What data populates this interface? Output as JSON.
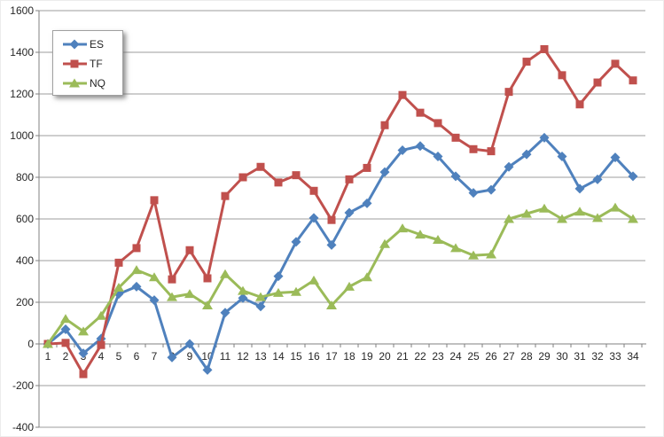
{
  "chart_data": {
    "type": "line",
    "title": "",
    "xlabel": "",
    "ylabel": "",
    "grid": true,
    "ylim": [
      -400,
      1600
    ],
    "ytick_step": 200,
    "y_ticks": [
      1600,
      1400,
      1200,
      1000,
      800,
      600,
      400,
      200,
      0,
      -200,
      -400
    ],
    "categories": [
      1,
      2,
      3,
      4,
      5,
      6,
      7,
      8,
      9,
      10,
      11,
      12,
      13,
      14,
      15,
      16,
      17,
      18,
      19,
      20,
      21,
      22,
      23,
      24,
      25,
      26,
      27,
      28,
      29,
      30,
      31,
      32,
      33,
      34
    ],
    "series": [
      {
        "name": "ES",
        "color": "#4F81BD",
        "marker": "diamond",
        "values": [
          0,
          70,
          -45,
          25,
          240,
          275,
          210,
          -65,
          0,
          -125,
          150,
          220,
          180,
          325,
          490,
          605,
          475,
          630,
          675,
          825,
          930,
          950,
          900,
          805,
          725,
          740,
          850,
          910,
          990,
          900,
          745,
          790,
          895,
          805
        ]
      },
      {
        "name": "TF",
        "color": "#C0504D",
        "marker": "square",
        "values": [
          0,
          5,
          -145,
          -5,
          390,
          460,
          690,
          310,
          450,
          315,
          710,
          800,
          850,
          775,
          810,
          735,
          595,
          790,
          845,
          1050,
          1195,
          1110,
          1060,
          990,
          935,
          925,
          1210,
          1355,
          1415,
          1290,
          1150,
          1255,
          1345,
          1265
        ]
      },
      {
        "name": "NQ",
        "color": "#9BBB59",
        "marker": "triangle",
        "values": [
          0,
          120,
          60,
          135,
          270,
          355,
          320,
          225,
          240,
          185,
          335,
          255,
          225,
          245,
          250,
          305,
          185,
          275,
          320,
          480,
          555,
          525,
          500,
          460,
          425,
          430,
          600,
          625,
          650,
          600,
          635,
          605,
          655,
          600
        ]
      }
    ],
    "legend": {
      "position": "top-left",
      "items": [
        "ES",
        "TF",
        "NQ"
      ]
    }
  },
  "style": {
    "gridline_color": "#9c9c9c",
    "axis_color": "#808080",
    "tick_text_color": "#262626",
    "background": "#ffffff"
  }
}
